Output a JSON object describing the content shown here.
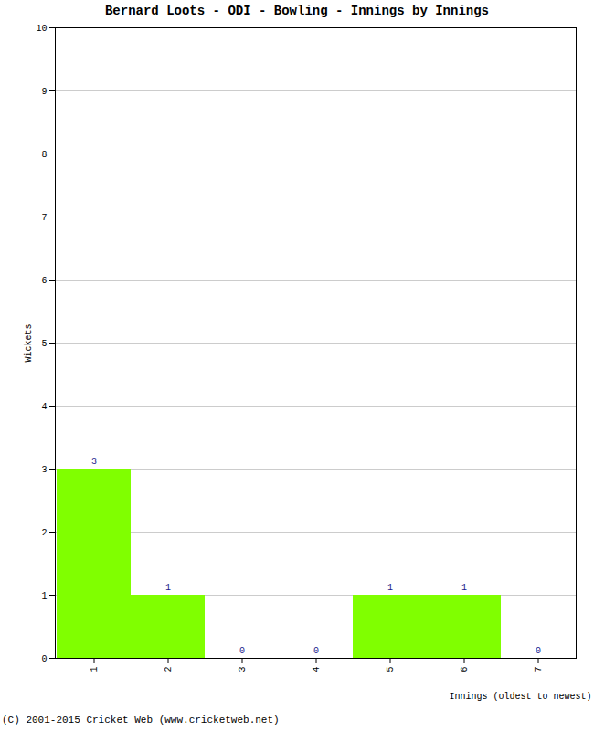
{
  "chart_data": {
    "type": "bar",
    "title": "Bernard Loots - ODI - Bowling - Innings by Innings",
    "caption": "(C) 2001-2015 Cricket Web (www.cricketweb.net)",
    "x_label": "Innings (oldest to newest)",
    "y_label": "Wickets",
    "categories": [
      "1",
      "2",
      "3",
      "4",
      "5",
      "6",
      "7"
    ],
    "values": [
      3,
      1,
      0,
      0,
      1,
      1,
      0
    ],
    "color": "#80ff00",
    "ylim": [
      0,
      10
    ],
    "yticks": [
      0,
      1,
      2,
      3,
      4,
      5,
      6,
      7,
      8,
      9,
      10
    ],
    "grid": true,
    "data_labels": true
  }
}
